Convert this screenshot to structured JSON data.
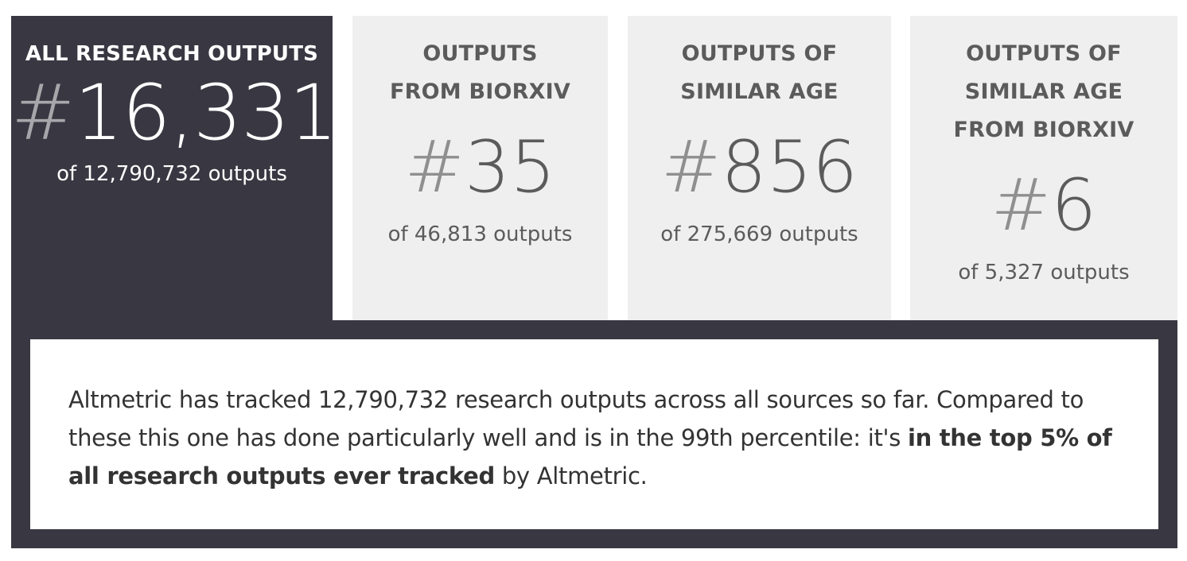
{
  "tabs": [
    {
      "heading": "ALL RESEARCH OUTPUTS",
      "hash": "#",
      "rank": "16,331",
      "of_text": "of 12,790,732 outputs",
      "active": true
    },
    {
      "heading": "OUTPUTS FROM BIORXIV",
      "hash": "#",
      "rank": "35",
      "of_text": "of 46,813 outputs",
      "active": false
    },
    {
      "heading": "OUTPUTS OF SIMILAR AGE",
      "hash": "#",
      "rank": "856",
      "of_text": "of 275,669 outputs",
      "active": false
    },
    {
      "heading": "OUTPUTS OF SIMILAR AGE FROM BIORXIV",
      "hash": "#",
      "rank": "6",
      "of_text": "of 5,327 outputs",
      "active": false
    }
  ],
  "summary": {
    "text_before": "Altmetric has tracked 12,790,732 research outputs across all sources so far. Compared to these this one has done particularly well and is in the 99th percentile: it's ",
    "text_bold": "in the top 5% of all research outputs ever tracked",
    "text_after": " by Altmetric."
  },
  "colors": {
    "active_bg": "#393842",
    "inactive_bg": "#efefef",
    "inactive_text": "#5b5b5b",
    "hash_color": "#8f8f8f"
  }
}
